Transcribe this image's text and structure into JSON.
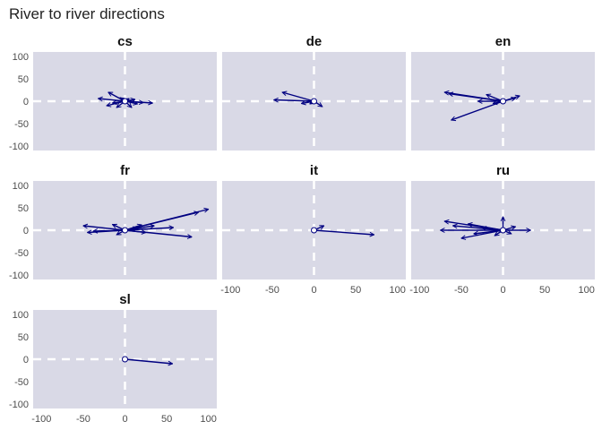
{
  "chart_data": {
    "type": "faceted-arrow",
    "title": "River to river directions",
    "xlim": [
      -110,
      110
    ],
    "ylim": [
      -110,
      110
    ],
    "x_ticks": [
      -100,
      -50,
      0,
      50,
      100
    ],
    "y_ticks": [
      100,
      50,
      0,
      -50,
      -100
    ],
    "reference_lines": {
      "x": 0,
      "y": 0,
      "style": "dashed"
    },
    "arrow_color": "#000080",
    "panel_background": "#d9d9e6",
    "facets": [
      {
        "name": "cs",
        "arrows": [
          {
            "x": [
              0,
              33
            ],
            "y": [
              0,
              -4
            ]
          },
          {
            "x": [
              0,
              22
            ],
            "y": [
              0,
              -3
            ]
          },
          {
            "x": [
              0,
              -20
            ],
            "y": [
              0,
              20
            ]
          },
          {
            "x": [
              0,
              -32
            ],
            "y": [
              0,
              6
            ]
          },
          {
            "x": [
              0,
              -22
            ],
            "y": [
              0,
              -10
            ]
          },
          {
            "x": [
              0,
              -10
            ],
            "y": [
              0,
              -14
            ]
          },
          {
            "x": [
              0,
              8
            ],
            "y": [
              0,
              -14
            ]
          },
          {
            "x": [
              0,
              15
            ],
            "y": [
              0,
              -6
            ]
          },
          {
            "x": [
              0,
              12
            ],
            "y": [
              0,
              4
            ]
          },
          {
            "x": [
              0,
              -15
            ],
            "y": [
              0,
              -4
            ]
          },
          {
            "x": [
              0,
              -6
            ],
            "y": [
              0,
              8
            ]
          },
          {
            "x": [
              0,
              5
            ],
            "y": [
              0,
              6
            ]
          }
        ]
      },
      {
        "name": "de",
        "arrows": [
          {
            "x": [
              0,
              -38
            ],
            "y": [
              0,
              20
            ]
          },
          {
            "x": [
              0,
              -48
            ],
            "y": [
              0,
              3
            ]
          },
          {
            "x": [
              0,
              10
            ],
            "y": [
              0,
              -12
            ]
          },
          {
            "x": [
              0,
              -15
            ],
            "y": [
              0,
              -5
            ]
          },
          {
            "x": [
              0,
              -5
            ],
            "y": [
              0,
              -6
            ]
          }
        ]
      },
      {
        "name": "en",
        "arrows": [
          {
            "x": [
              0,
              -70
            ],
            "y": [
              0,
              20
            ]
          },
          {
            "x": [
              0,
              -65
            ],
            "y": [
              0,
              17
            ]
          },
          {
            "x": [
              0,
              -20
            ],
            "y": [
              0,
              15
            ]
          },
          {
            "x": [
              0,
              20
            ],
            "y": [
              0,
              12
            ]
          },
          {
            "x": [
              0,
              15
            ],
            "y": [
              0,
              7
            ]
          },
          {
            "x": [
              0,
              -62
            ],
            "y": [
              0,
              -42
            ]
          },
          {
            "x": [
              0,
              -30
            ],
            "y": [
              0,
              0
            ]
          },
          {
            "x": [
              0,
              -12
            ],
            "y": [
              0,
              -5
            ]
          }
        ]
      },
      {
        "name": "fr",
        "arrows": [
          {
            "x": [
              0,
              100
            ],
            "y": [
              0,
              47
            ]
          },
          {
            "x": [
              0,
              88
            ],
            "y": [
              0,
              40
            ]
          },
          {
            "x": [
              0,
              80
            ],
            "y": [
              0,
              -15
            ]
          },
          {
            "x": [
              0,
              58
            ],
            "y": [
              0,
              6
            ]
          },
          {
            "x": [
              0,
              35
            ],
            "y": [
              0,
              10
            ]
          },
          {
            "x": [
              0,
              20
            ],
            "y": [
              0,
              12
            ]
          },
          {
            "x": [
              0,
              -50
            ],
            "y": [
              0,
              10
            ]
          },
          {
            "x": [
              0,
              -45
            ],
            "y": [
              0,
              -5
            ]
          },
          {
            "x": [
              0,
              -38
            ],
            "y": [
              0,
              -2
            ]
          },
          {
            "x": [
              0,
              -15
            ],
            "y": [
              0,
              13
            ]
          },
          {
            "x": [
              0,
              -10
            ],
            "y": [
              0,
              -10
            ]
          },
          {
            "x": [
              0,
              25
            ],
            "y": [
              0,
              -5
            ]
          },
          {
            "x": [
              0,
              15
            ],
            "y": [
              0,
              5
            ]
          }
        ]
      },
      {
        "name": "it",
        "arrows": [
          {
            "x": [
              0,
              72
            ],
            "y": [
              0,
              -10
            ]
          },
          {
            "x": [
              0,
              12
            ],
            "y": [
              0,
              10
            ]
          }
        ]
      },
      {
        "name": "ru",
        "arrows": [
          {
            "x": [
              0,
              -75
            ],
            "y": [
              0,
              0
            ]
          },
          {
            "x": [
              0,
              -70
            ],
            "y": [
              0,
              20
            ]
          },
          {
            "x": [
              0,
              -60
            ],
            "y": [
              0,
              10
            ]
          },
          {
            "x": [
              0,
              -50
            ],
            "y": [
              0,
              -18
            ]
          },
          {
            "x": [
              0,
              -42
            ],
            "y": [
              0,
              14
            ]
          },
          {
            "x": [
              0,
              -35
            ],
            "y": [
              0,
              -8
            ]
          },
          {
            "x": [
              0,
              -25
            ],
            "y": [
              0,
              5
            ]
          },
          {
            "x": [
              0,
              33
            ],
            "y": [
              0,
              0
            ]
          },
          {
            "x": [
              0,
              15
            ],
            "y": [
              0,
              8
            ]
          },
          {
            "x": [
              0,
              10
            ],
            "y": [
              0,
              -8
            ]
          },
          {
            "x": [
              0,
              0
            ],
            "y": [
              0,
              30
            ]
          },
          {
            "x": [
              0,
              -10
            ],
            "y": [
              0,
              -12
            ]
          }
        ]
      },
      {
        "name": "sl",
        "arrows": [
          {
            "x": [
              0,
              57
            ],
            "y": [
              0,
              -10
            ]
          }
        ]
      }
    ]
  }
}
